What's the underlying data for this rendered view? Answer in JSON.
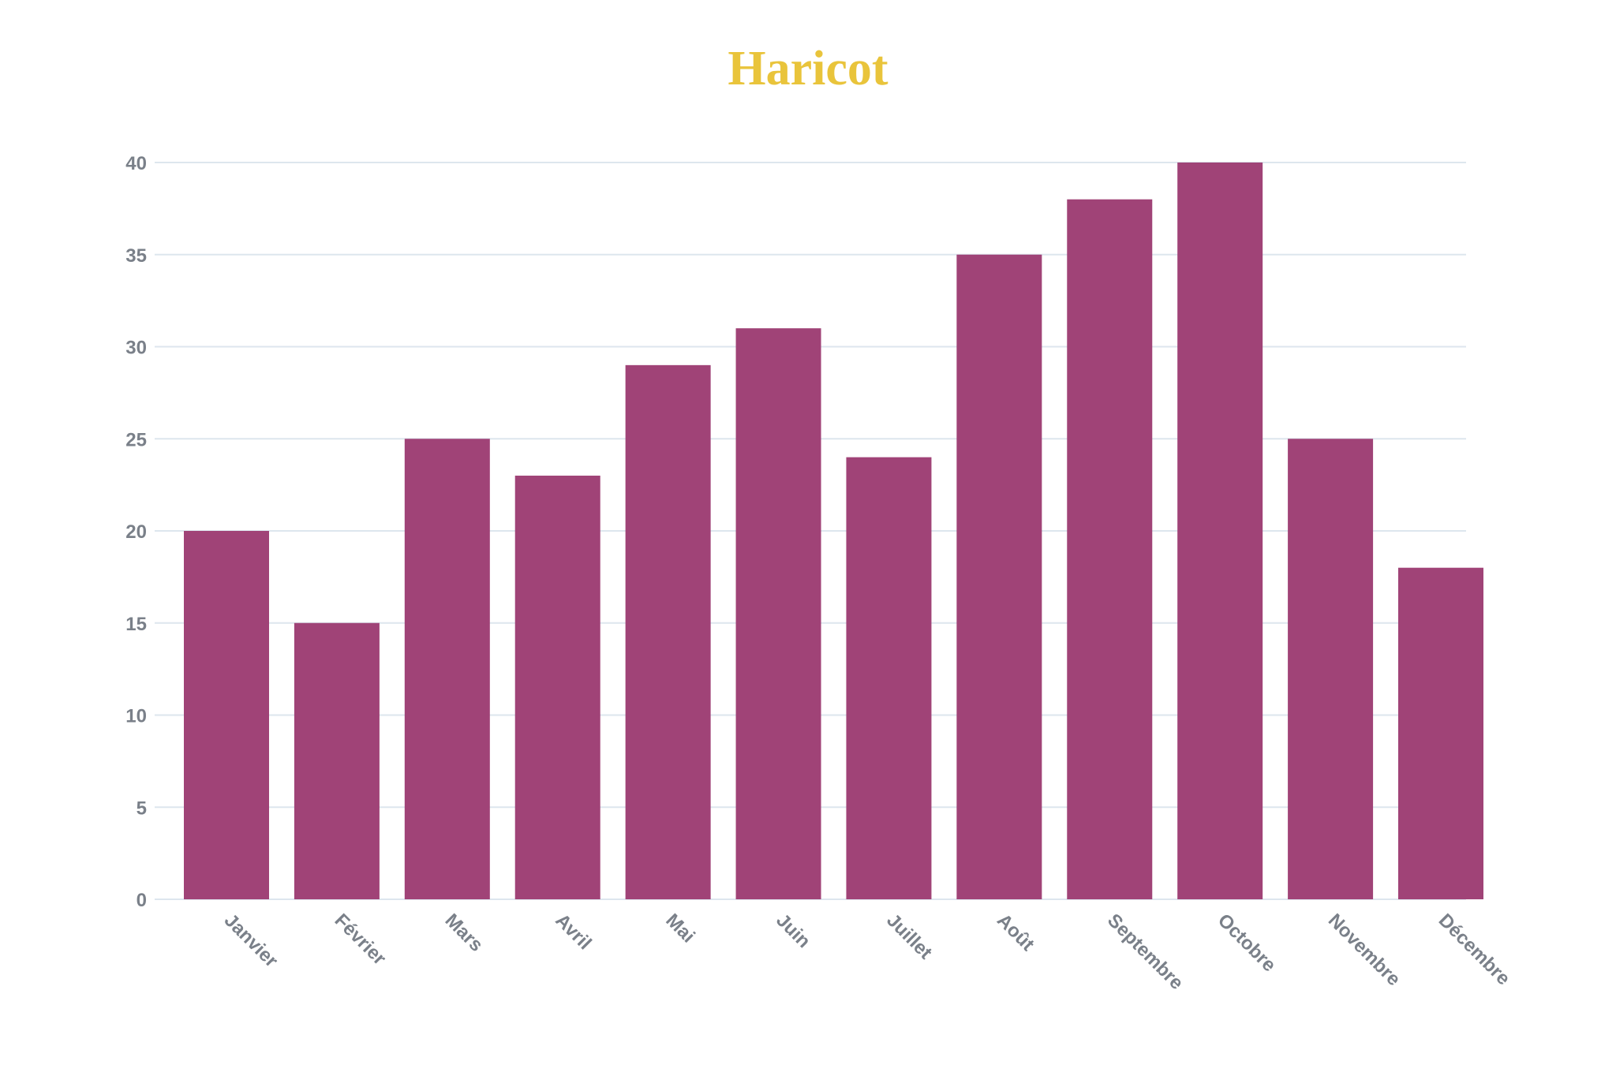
{
  "chart_data": {
    "type": "bar",
    "title": "Haricot",
    "xlabel": "",
    "ylabel": "",
    "categories": [
      "Janvier",
      "Février",
      "Mars",
      "Avril",
      "Mai",
      "Juin",
      "Juillet",
      "Août",
      "Septembre",
      "Octobre",
      "Novembre",
      "Décembre"
    ],
    "values": [
      20,
      15,
      25,
      23,
      29,
      31,
      24,
      35,
      38,
      40,
      25,
      18
    ],
    "ylim": [
      0,
      40
    ],
    "yticks": [
      0,
      5,
      10,
      15,
      20,
      25,
      30,
      35,
      40
    ],
    "grid": true,
    "legend": "none",
    "colors": {
      "bar": "#a04377",
      "title": "#e9c43b",
      "grid": "#dde6ee",
      "tick_label": "#7a8089"
    }
  }
}
